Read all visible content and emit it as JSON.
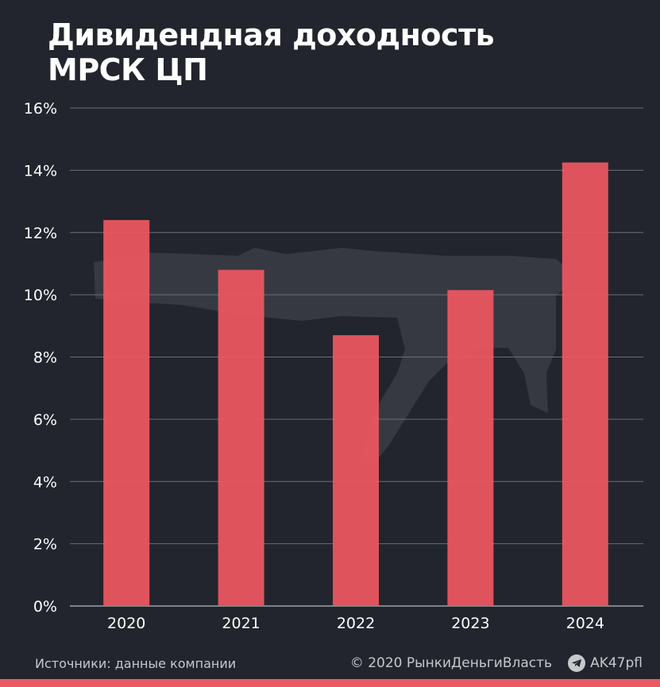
{
  "title": "Дивидендная доходность МРСК ЦП",
  "colors": {
    "background": "#22252d",
    "bar": "#ea5560",
    "grid": "#6a6e78",
    "text": "#ffffff",
    "footer_text": "#c6c8cd",
    "watermark": "#3a3d46"
  },
  "chart_data": {
    "type": "bar",
    "title": "Дивидендная доходность МРСК ЦП",
    "categories": [
      "2020",
      "2021",
      "2022",
      "2023",
      "2024"
    ],
    "values": [
      12.4,
      10.8,
      8.7,
      10.15,
      14.25
    ],
    "y_ticks": [
      "0%",
      "2%",
      "4%",
      "6%",
      "8%",
      "10%",
      "12%",
      "14%",
      "16%"
    ],
    "ylim": [
      0,
      16
    ],
    "grid": true,
    "xlabel": "",
    "ylabel": ""
  },
  "footer": {
    "source": "Источники: данные компании",
    "copyright": "© 2020  РынкиДеньгиВласть",
    "telegram_handle": "AK47pfl",
    "telegram_icon": "telegram-icon"
  }
}
